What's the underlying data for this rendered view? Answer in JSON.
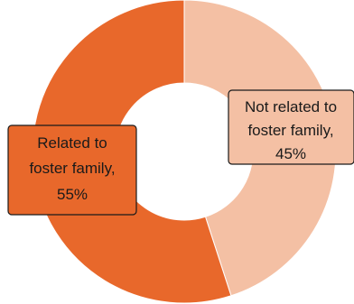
{
  "chart_data": {
    "type": "pie",
    "variant": "donut",
    "title": "",
    "slices": [
      {
        "name": "Not related to foster family",
        "value": 45,
        "label_lines": [
          "Not related to",
          "foster family,",
          "45%"
        ],
        "color": "#f4c0a4"
      },
      {
        "name": "Related to foster family",
        "value": 55,
        "label_lines": [
          "Related to",
          "foster family,",
          "55%"
        ],
        "color": "#e8682b"
      }
    ],
    "legend": "none",
    "start": "top, clockwise"
  }
}
